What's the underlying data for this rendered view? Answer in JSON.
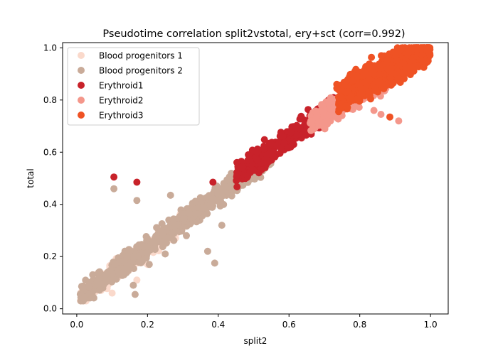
{
  "chart_data": {
    "type": "scatter",
    "title": "Pseudotime correlation split2vstotal, ery+sct (corr=0.992)",
    "xlabel": "split2",
    "ylabel": "total",
    "xlim": [
      -0.04,
      1.05
    ],
    "ylim": [
      -0.02,
      1.02
    ],
    "xticks": [
      "0.0",
      "0.2",
      "0.4",
      "0.6",
      "0.8",
      "1.0"
    ],
    "yticks": [
      "0.0",
      "0.2",
      "0.4",
      "0.6",
      "0.8",
      "1.0"
    ],
    "grid": false,
    "legend_position": "top-left",
    "series": [
      {
        "name": "Blood progenitors 1",
        "color": "#fad9cb",
        "x_range": [
          0.01,
          0.3
        ],
        "slope": 0.98,
        "intercept": 0.035,
        "spread": 0.018,
        "count": 300,
        "outliers": [
          [
            0.05,
            0.13
          ],
          [
            0.06,
            0.09
          ],
          [
            0.1,
            0.06
          ],
          [
            0.17,
            0.11
          ],
          [
            0.2,
            0.17
          ],
          [
            0.23,
            0.29
          ],
          [
            0.28,
            0.33
          ]
        ]
      },
      {
        "name": "Blood progenitors 2",
        "color": "#c9ab99",
        "x_range": [
          0.01,
          0.55
        ],
        "slope": 1.0,
        "intercept": 0.035,
        "spread": 0.02,
        "count": 650,
        "outliers": [
          [
            0.105,
            0.46
          ],
          [
            0.17,
            0.415
          ],
          [
            0.265,
            0.435
          ],
          [
            0.39,
            0.175
          ],
          [
            0.205,
            0.17
          ],
          [
            0.31,
            0.28
          ],
          [
            0.37,
            0.22
          ],
          [
            0.41,
            0.32
          ],
          [
            0.02,
            0.04
          ],
          [
            0.045,
            0.13
          ],
          [
            0.165,
            0.055
          ],
          [
            0.16,
            0.09
          ],
          [
            0.25,
            0.21
          ]
        ]
      },
      {
        "name": "Erythroid1",
        "color": "#c8222a",
        "x_range": [
          0.45,
          0.73
        ],
        "slope": 0.96,
        "intercept": 0.08,
        "spread": 0.02,
        "count": 480,
        "outliers": [
          [
            0.105,
            0.505
          ],
          [
            0.17,
            0.485
          ],
          [
            0.385,
            0.485
          ],
          [
            0.485,
            0.59
          ],
          [
            0.62,
            0.69
          ],
          [
            0.68,
            0.715
          ]
        ]
      },
      {
        "name": "Erythroid2",
        "color": "#f4978b",
        "x_range": [
          0.66,
          0.88
        ],
        "slope": 0.78,
        "intercept": 0.2,
        "spread": 0.022,
        "count": 380,
        "outliers": [
          [
            0.775,
            0.78
          ],
          [
            0.81,
            0.83
          ],
          [
            0.87,
            0.835
          ],
          [
            0.86,
            0.745
          ],
          [
            0.78,
            0.84
          ],
          [
            0.91,
            0.72
          ],
          [
            0.84,
            0.76
          ]
        ]
      },
      {
        "name": "Erythroid3",
        "color": "#ef5224",
        "x_range": [
          0.74,
          1.0
        ],
        "slope": 0.72,
        "intercept": 0.28,
        "spread": 0.028,
        "count": 900,
        "outliers": [
          [
            0.735,
            0.86
          ],
          [
            0.78,
            0.895
          ],
          [
            0.735,
            0.845
          ],
          [
            0.885,
            0.735
          ],
          [
            0.83,
            0.92
          ],
          [
            0.76,
            0.83
          ],
          [
            0.99,
            0.99
          ],
          [
            0.96,
            0.995
          ]
        ]
      }
    ]
  }
}
